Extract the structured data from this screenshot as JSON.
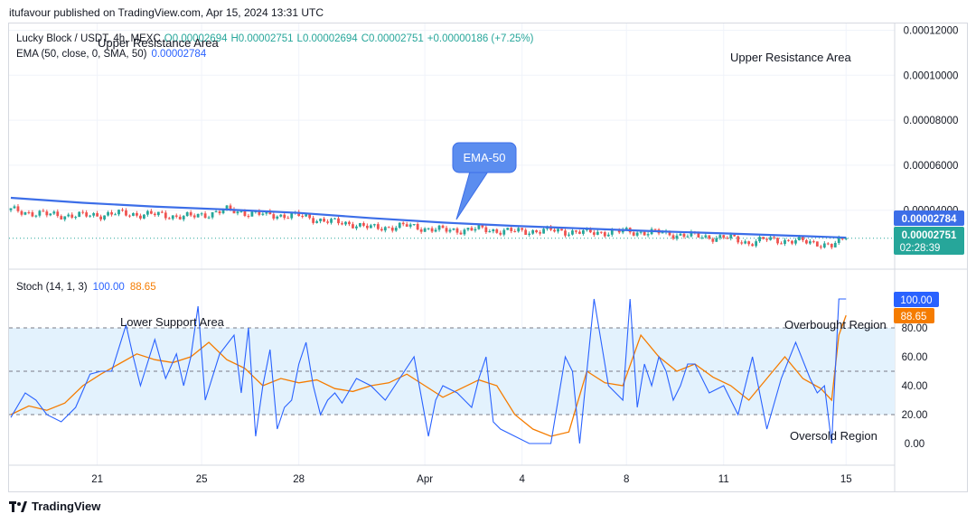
{
  "header": {
    "publisher_line": "itufavour published on TradingView.com, Apr 15, 2024 13:31 UTC"
  },
  "legend": {
    "symbol": "Lucky Block / USDT, 4h, MEXC",
    "ohlc_o": "O0.00002694",
    "ohlc_h": "H0.00002751",
    "ohlc_l": "L0.00002694",
    "ohlc_c": "C0.00002751",
    "change": "+0.00000186 (+7.25%)",
    "ema_label": "EMA (50, close, 0, SMA, 50)",
    "ema_value": "0.00002784",
    "stoch_label": "Stoch (14, 1, 3)",
    "stoch_k": "100.00",
    "stoch_d": "88.65"
  },
  "annotations": {
    "upper_resistance_left": "Upper Resistance Area",
    "upper_resistance_right": "Upper Resistance Area",
    "ema_callout": "EMA-50",
    "lower_support": "Lower Support Area",
    "overbought": "Overbought Region",
    "oversold": "Oversold Region"
  },
  "price_badges": {
    "ema": "0.00002784",
    "last": "0.00002751",
    "countdown": "02:28:39"
  },
  "stoch_badges": {
    "k": "100.00",
    "d": "88.65"
  },
  "colors": {
    "up": "#26a69a",
    "down": "#ef5350",
    "ema": "#3c6ee8",
    "k": "#2962ff",
    "d": "#f57c00",
    "stoch_band": "#e3f2fd"
  },
  "footer": {
    "brand": "TradingView"
  },
  "chart_data": [
    {
      "type": "line",
      "title": "Lucky Block / USDT, 4h, MEXC",
      "yaxis_ticks": [
        "0.00012000",
        "0.00010000",
        "0.00008000",
        "0.00006000",
        "0.00004000"
      ],
      "y_tick_values": [
        0.00012,
        0.0001,
        8e-05,
        6e-05,
        4e-05
      ],
      "ylim": [
        1.9e-05,
        0.000121
      ],
      "x_ticks": [
        "21",
        "25",
        "28",
        "Apr",
        "4",
        "8",
        "11",
        "15"
      ],
      "x_tick_index": [
        24,
        53,
        80,
        115,
        142,
        171,
        198,
        232
      ],
      "bars": 246,
      "series": [
        {
          "name": "EMA (50, close, 0, SMA, 50)",
          "x": [
            0,
            20,
            40,
            60,
            80,
            100,
            120,
            140,
            160,
            180,
            200,
            220,
            232
          ],
          "values": [
            4.55e-05,
            4.33e-05,
            4.16e-05,
            4.03e-05,
            3.88e-05,
            3.65e-05,
            3.45e-05,
            3.3e-05,
            3.18e-05,
            3.06e-05,
            2.96e-05,
            2.85e-05,
            2.78e-05
          ]
        },
        {
          "name": "Close",
          "x": [
            0,
            10,
            20,
            30,
            40,
            50,
            60,
            70,
            80,
            90,
            95,
            100,
            110,
            120,
            130,
            140,
            150,
            160,
            170,
            180,
            186,
            190,
            200,
            205,
            210,
            215,
            220,
            224,
            228,
            232
          ],
          "values": [
            4e-05,
            3.8e-05,
            3.75e-05,
            3.85e-05,
            3.8e-05,
            3.7e-05,
            4e-05,
            3.8e-05,
            3.75e-05,
            3.45e-05,
            3.4e-05,
            3.2e-05,
            3.3e-05,
            3.1e-05,
            3.15e-05,
            3.05e-05,
            3.1e-05,
            3e-05,
            3.05e-05,
            3e-05,
            2.9e-05,
            2.85e-05,
            2.75e-05,
            2.55e-05,
            2.7e-05,
            2.65e-05,
            2.6e-05,
            2.55e-05,
            2.4e-05,
            2.75e-05
          ]
        }
      ],
      "last_price": 2.751e-05
    },
    {
      "type": "line",
      "title": "Stoch (14, 1, 3)",
      "yaxis_ticks": [
        "80.00",
        "60.00",
        "40.00",
        "20.00",
        "0.00"
      ],
      "y_tick_values": [
        80,
        60,
        40,
        20,
        0
      ],
      "ylim": [
        -10,
        110
      ],
      "bands": [
        20,
        50,
        80
      ],
      "series": [
        {
          "name": "%K",
          "x": [
            0,
            4,
            7,
            10,
            14,
            18,
            22,
            25,
            28,
            32,
            34,
            36,
            40,
            43,
            46,
            48,
            50,
            52,
            54,
            58,
            62,
            64,
            66,
            68,
            70,
            72,
            74,
            76,
            78,
            80,
            82,
            84,
            86,
            88,
            90,
            92,
            96,
            100,
            104,
            108,
            112,
            116,
            118,
            120,
            124,
            128,
            130,
            132,
            134,
            136,
            140,
            144,
            146,
            150,
            154,
            156,
            158,
            162,
            166,
            170,
            172,
            174,
            176,
            178,
            180,
            182,
            184,
            186,
            188,
            190,
            194,
            198,
            202,
            206,
            210,
            214,
            218,
            222,
            224,
            226,
            228,
            230,
            232
          ],
          "values": [
            18,
            35,
            30,
            20,
            15,
            25,
            48,
            50,
            50,
            82,
            60,
            40,
            72,
            45,
            62,
            40,
            60,
            95,
            30,
            62,
            75,
            35,
            80,
            5,
            40,
            65,
            10,
            25,
            30,
            55,
            70,
            40,
            20,
            30,
            35,
            28,
            45,
            40,
            30,
            45,
            60,
            5,
            30,
            40,
            35,
            25,
            45,
            60,
            15,
            10,
            5,
            0,
            0,
            0,
            60,
            50,
            0,
            100,
            40,
            30,
            100,
            25,
            55,
            40,
            60,
            50,
            30,
            40,
            55,
            55,
            35,
            40,
            20,
            60,
            10,
            45,
            70,
            45,
            35,
            40,
            0,
            100,
            100
          ]
        },
        {
          "name": "%D",
          "x": [
            0,
            5,
            10,
            15,
            20,
            25,
            30,
            35,
            40,
            45,
            50,
            55,
            60,
            65,
            70,
            75,
            80,
            85,
            90,
            95,
            100,
            105,
            110,
            115,
            120,
            125,
            130,
            135,
            140,
            145,
            150,
            155,
            160,
            165,
            170,
            175,
            180,
            185,
            190,
            195,
            200,
            205,
            210,
            215,
            220,
            225,
            228,
            230,
            232
          ],
          "values": [
            20,
            26,
            23,
            28,
            40,
            48,
            55,
            62,
            58,
            56,
            60,
            70,
            58,
            52,
            40,
            45,
            42,
            44,
            38,
            36,
            40,
            42,
            48,
            40,
            32,
            38,
            44,
            40,
            20,
            10,
            5,
            8,
            50,
            42,
            40,
            75,
            60,
            50,
            55,
            46,
            40,
            30,
            45,
            60,
            45,
            38,
            30,
            75,
            88.65
          ]
        }
      ]
    }
  ]
}
